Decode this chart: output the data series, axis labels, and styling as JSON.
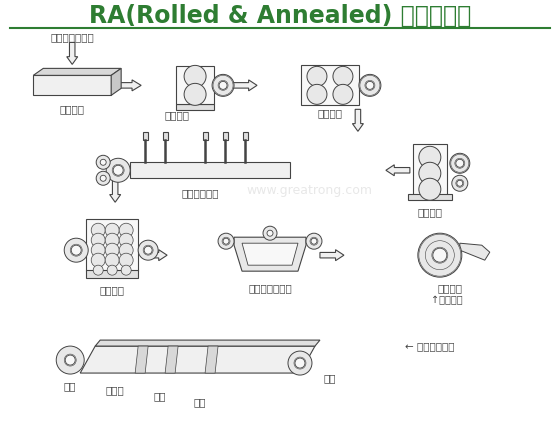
{
  "title": "RA(Rolled & Annealed) 銅生產流程",
  "title_color": "#2e7d32",
  "title_fontsize": 17,
  "bg_color": "#ffffff",
  "lc": "#444444",
  "lc_light": "#888888",
  "watermark": "www.greatrong.com",
  "labels": {
    "melting": "（溶層、鑄造）",
    "ingot": "（鑄胚）",
    "hot_roll": "（熱軋）",
    "face_cut": "（面削）",
    "anneal": "（退火酸洗）",
    "mid_roll": "（中軋）",
    "fine_roll": "（精軋）",
    "degrease": "（脫脂、洗淨）",
    "raw_foil": "（原箔）",
    "raw_foil2": "↑原箔工程",
    "raw_foil3": "原箔",
    "pretreat": "前處理",
    "roughen": "粗化",
    "antirust": "防錆",
    "product": "成品",
    "surface": "← 表面處理工程"
  }
}
